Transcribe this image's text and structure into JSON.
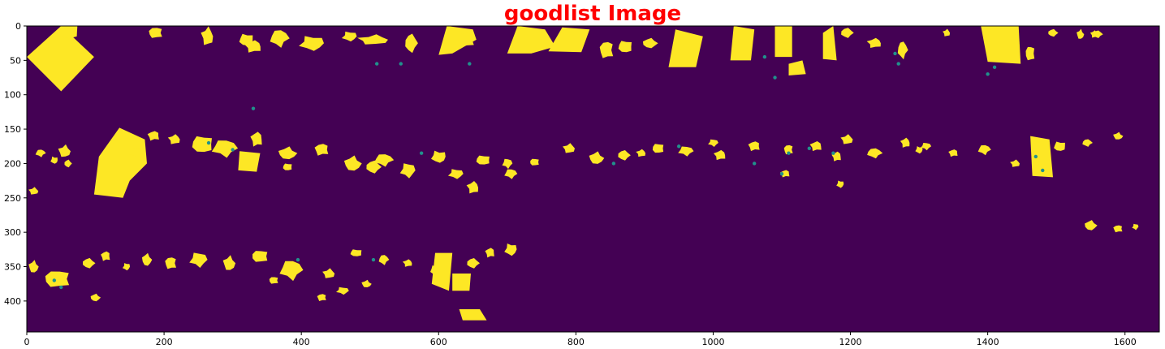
{
  "title": "goodlist Image",
  "colors": {
    "title": "#ff0000",
    "background": "#440154",
    "mask": "#fde725",
    "edge": "#21918c",
    "axis": "#000000"
  },
  "chart_data": {
    "type": "heatmap",
    "title": "goodlist Image",
    "colormap": "viridis",
    "xlim": [
      0,
      1650
    ],
    "ylim": [
      445,
      0
    ],
    "xticks": [
      0,
      200,
      400,
      600,
      800,
      1000,
      1200,
      1400,
      1600
    ],
    "yticks": [
      0,
      50,
      100,
      150,
      200,
      250,
      300,
      350,
      400
    ],
    "values": [
      0,
      1
    ],
    "regions": [
      {
        "shape": "poly",
        "points": [
          [
            0,
            45
          ],
          [
            50,
            0
          ],
          [
            98,
            45
          ],
          [
            50,
            95
          ]
        ]
      },
      {
        "shape": "poly",
        "points": [
          [
            98,
            245
          ],
          [
            105,
            190
          ],
          [
            135,
            148
          ],
          [
            172,
            165
          ],
          [
            175,
            200
          ],
          [
            150,
            225
          ],
          [
            140,
            250
          ]
        ]
      },
      {
        "shape": "poly",
        "points": [
          [
            600,
            42
          ],
          [
            612,
            0
          ],
          [
            650,
            5
          ],
          [
            655,
            20
          ],
          [
            620,
            40
          ]
        ]
      },
      {
        "shape": "poly",
        "points": [
          [
            700,
            40
          ],
          [
            715,
            0
          ],
          [
            755,
            5
          ],
          [
            770,
            30
          ],
          [
            735,
            40
          ]
        ]
      },
      {
        "shape": "poly",
        "points": [
          [
            760,
            37
          ],
          [
            780,
            2
          ],
          [
            820,
            5
          ],
          [
            808,
            38
          ]
        ]
      },
      {
        "shape": "poly",
        "points": [
          [
            935,
            60
          ],
          [
            945,
            5
          ],
          [
            985,
            15
          ],
          [
            975,
            60
          ]
        ]
      },
      {
        "shape": "poly",
        "points": [
          [
            1030,
            0
          ],
          [
            1060,
            5
          ],
          [
            1055,
            50
          ],
          [
            1025,
            50
          ]
        ]
      },
      {
        "shape": "poly",
        "points": [
          [
            1090,
            0
          ],
          [
            1115,
            0
          ],
          [
            1115,
            45
          ],
          [
            1090,
            45
          ]
        ]
      },
      {
        "shape": "poly",
        "points": [
          [
            1160,
            10
          ],
          [
            1175,
            0
          ],
          [
            1180,
            50
          ],
          [
            1160,
            48
          ]
        ]
      },
      {
        "shape": "poly",
        "points": [
          [
            1390,
            0
          ],
          [
            1445,
            0
          ],
          [
            1448,
            55
          ],
          [
            1400,
            52
          ]
        ]
      },
      {
        "shape": "poly",
        "points": [
          [
            1110,
            55
          ],
          [
            1130,
            50
          ],
          [
            1135,
            70
          ],
          [
            1110,
            72
          ]
        ]
      },
      {
        "shape": "poly",
        "points": [
          [
            590,
            375
          ],
          [
            595,
            330
          ],
          [
            620,
            330
          ],
          [
            615,
            385
          ]
        ]
      },
      {
        "shape": "poly",
        "points": [
          [
            620,
            360
          ],
          [
            647,
            360
          ],
          [
            645,
            385
          ],
          [
            620,
            385
          ]
        ]
      },
      {
        "shape": "poly",
        "points": [
          [
            630,
            412
          ],
          [
            660,
            412
          ],
          [
            670,
            428
          ],
          [
            635,
            428
          ]
        ]
      },
      {
        "shape": "poly",
        "points": [
          [
            310,
            182
          ],
          [
            340,
            185
          ],
          [
            335,
            212
          ],
          [
            308,
            210
          ]
        ]
      },
      {
        "shape": "poly",
        "points": [
          [
            1462,
            160
          ],
          [
            1490,
            165
          ],
          [
            1495,
            220
          ],
          [
            1465,
            218
          ]
        ]
      }
    ],
    "blobs": [
      [
        60,
        8,
        120,
        20,
        18,
        12
      ],
      [
        188,
        10,
        153,
        22,
        12,
        9
      ],
      [
        263,
        15,
        185,
        15,
        10,
        15
      ],
      [
        320,
        20,
        239,
        25,
        12,
        10
      ],
      [
        330,
        30,
        279,
        20,
        14,
        10
      ],
      [
        368,
        18,
        335,
        15,
        15,
        14
      ],
      [
        415,
        25,
        359,
        20,
        20,
        12
      ],
      [
        470,
        15,
        410,
        30,
        12,
        8
      ],
      [
        505,
        20,
        465,
        10,
        25,
        8
      ],
      [
        560,
        25,
        548,
        20,
        10,
        15
      ],
      [
        640,
        20,
        637,
        30,
        15,
        12
      ],
      [
        845,
        35,
        900,
        20,
        12,
        14
      ],
      [
        872,
        30,
        935,
        30,
        12,
        10
      ],
      [
        908,
        25,
        990,
        22,
        12,
        8
      ],
      [
        1195,
        10,
        1015,
        35,
        10,
        8
      ],
      [
        1235,
        25,
        1060,
        25,
        12,
        8
      ],
      [
        1276,
        35,
        1108,
        30,
        8,
        14
      ],
      [
        1340,
        10,
        1170,
        15,
        6,
        6
      ],
      [
        1462,
        40,
        1240,
        20,
        8,
        12
      ],
      [
        1495,
        10,
        1270,
        15,
        8,
        6
      ],
      [
        1535,
        12,
        1305,
        20,
        6,
        8
      ],
      [
        1555,
        12,
        1340,
        25,
        6,
        6
      ],
      [
        1560,
        12,
        1380,
        15,
        8,
        6
      ],
      [
        55,
        182,
        210,
        35,
        10,
        10
      ],
      [
        160,
        184,
        250,
        25,
        12,
        8
      ],
      [
        185,
        160,
        305,
        5,
        10,
        8
      ],
      [
        215,
        165,
        355,
        20,
        10,
        8
      ],
      [
        256,
        172,
        400,
        30,
        18,
        14
      ],
      [
        288,
        178,
        445,
        35,
        20,
        14
      ],
      [
        335,
        165,
        500,
        20,
        10,
        12
      ],
      [
        380,
        185,
        515,
        25,
        15,
        10
      ],
      [
        430,
        180,
        560,
        30,
        12,
        10
      ],
      [
        475,
        200,
        600,
        50,
        14,
        12
      ],
      [
        505,
        205,
        650,
        40,
        12,
        10
      ],
      [
        520,
        195,
        700,
        15,
        15,
        10
      ],
      [
        555,
        210,
        750,
        30,
        12,
        12
      ],
      [
        600,
        190,
        800,
        20,
        12,
        10
      ],
      [
        665,
        195,
        850,
        10,
        12,
        8
      ],
      [
        705,
        215,
        895,
        20,
        10,
        8
      ],
      [
        740,
        198,
        960,
        20,
        8,
        6
      ],
      [
        790,
        178,
        1000,
        25,
        10,
        8
      ],
      [
        830,
        192,
        1050,
        30,
        12,
        10
      ],
      [
        870,
        188,
        1100,
        20,
        10,
        8
      ],
      [
        920,
        178,
        1130,
        20,
        10,
        8
      ],
      [
        960,
        182,
        1175,
        10,
        12,
        8
      ],
      [
        1010,
        188,
        1230,
        15,
        10,
        8
      ],
      [
        1060,
        175,
        1290,
        15,
        10,
        8
      ],
      [
        1110,
        180,
        1350,
        25,
        8,
        8
      ],
      [
        1150,
        175,
        1400,
        20,
        10,
        8
      ],
      [
        1195,
        165,
        1450,
        10,
        10,
        8
      ],
      [
        1235,
        185,
        1490,
        15,
        12,
        8
      ],
      [
        1280,
        170,
        1510,
        20,
        8,
        8
      ],
      [
        1310,
        175,
        1540,
        20,
        8,
        6
      ],
      [
        1350,
        185,
        1570,
        20,
        8,
        6
      ],
      [
        1395,
        180,
        1600,
        10,
        10,
        8
      ],
      [
        1440,
        200,
        1620,
        10,
        8,
        6
      ],
      [
        1505,
        175,
        1640,
        20,
        10,
        8
      ],
      [
        1545,
        170,
        1660,
        15,
        8,
        6
      ],
      [
        1590,
        160,
        1670,
        10,
        8,
        6
      ],
      [
        20,
        185,
        1685,
        15,
        8,
        6
      ],
      [
        40,
        195,
        1700,
        10,
        6,
        6
      ],
      [
        60,
        200,
        1720,
        15,
        6,
        6
      ],
      [
        380,
        205,
        1750,
        20,
        8,
        6
      ],
      [
        895,
        185,
        1790,
        15,
        8,
        6
      ],
      [
        1000,
        170,
        1820,
        10,
        8,
        6
      ],
      [
        1180,
        190,
        1850,
        15,
        8,
        8
      ],
      [
        1300,
        180,
        1870,
        10,
        6,
        6
      ],
      [
        10,
        240,
        1900,
        10,
        8,
        6
      ],
      [
        625,
        215,
        1930,
        25,
        12,
        8
      ],
      [
        650,
        235,
        1960,
        15,
        10,
        10
      ],
      [
        700,
        200,
        1990,
        15,
        8,
        8
      ],
      [
        1105,
        215,
        2020,
        15,
        8,
        6
      ],
      [
        1185,
        230,
        2040,
        5,
        6,
        6
      ],
      [
        1550,
        290,
        2060,
        20,
        10,
        8
      ],
      [
        1590,
        295,
        2080,
        20,
        8,
        6
      ],
      [
        1615,
        292,
        2100,
        5,
        5,
        5
      ],
      [
        10,
        350,
        2120,
        20,
        8,
        10
      ],
      [
        45,
        368,
        2140,
        30,
        22,
        14
      ],
      [
        90,
        345,
        2170,
        20,
        10,
        8
      ],
      [
        115,
        335,
        2190,
        20,
        8,
        8
      ],
      [
        145,
        350,
        2210,
        10,
        6,
        6
      ],
      [
        175,
        340,
        2230,
        25,
        8,
        10
      ],
      [
        210,
        345,
        2250,
        20,
        10,
        10
      ],
      [
        250,
        340,
        2270,
        25,
        14,
        12
      ],
      [
        295,
        345,
        2290,
        20,
        10,
        12
      ],
      [
        340,
        335,
        2310,
        30,
        14,
        10
      ],
      [
        385,
        355,
        2330,
        25,
        18,
        16
      ],
      [
        440,
        360,
        2350,
        20,
        10,
        8
      ],
      [
        480,
        330,
        2370,
        15,
        10,
        6
      ],
      [
        520,
        340,
        2390,
        20,
        8,
        8
      ],
      [
        555,
        345,
        2410,
        15,
        8,
        6
      ],
      [
        595,
        355,
        2430,
        10,
        8,
        8
      ],
      [
        650,
        345,
        2450,
        20,
        10,
        8
      ],
      [
        675,
        330,
        2470,
        15,
        8,
        8
      ],
      [
        705,
        325,
        2490,
        25,
        10,
        10
      ],
      [
        100,
        395,
        2510,
        15,
        8,
        6
      ],
      [
        430,
        395,
        2530,
        15,
        8,
        6
      ],
      [
        460,
        385,
        2550,
        15,
        10,
        6
      ],
      [
        495,
        375,
        2570,
        15,
        8,
        6
      ],
      [
        360,
        370,
        2590,
        20,
        8,
        6
      ]
    ],
    "edge_patches": [
      [
        40,
        370
      ],
      [
        265,
        170
      ],
      [
        300,
        180
      ],
      [
        510,
        55
      ],
      [
        545,
        55
      ],
      [
        1075,
        45
      ],
      [
        1090,
        75
      ],
      [
        1265,
        40
      ],
      [
        1270,
        55
      ],
      [
        1410,
        60
      ],
      [
        1400,
        70
      ],
      [
        1470,
        190
      ],
      [
        1480,
        210
      ],
      [
        1110,
        185
      ],
      [
        1140,
        178
      ],
      [
        1175,
        185
      ],
      [
        855,
        200
      ],
      [
        950,
        175
      ],
      [
        575,
        185
      ],
      [
        645,
        55
      ],
      [
        330,
        120
      ],
      [
        395,
        340
      ],
      [
        505,
        340
      ],
      [
        50,
        380
      ],
      [
        1060,
        200
      ],
      [
        1100,
        215
      ]
    ]
  }
}
